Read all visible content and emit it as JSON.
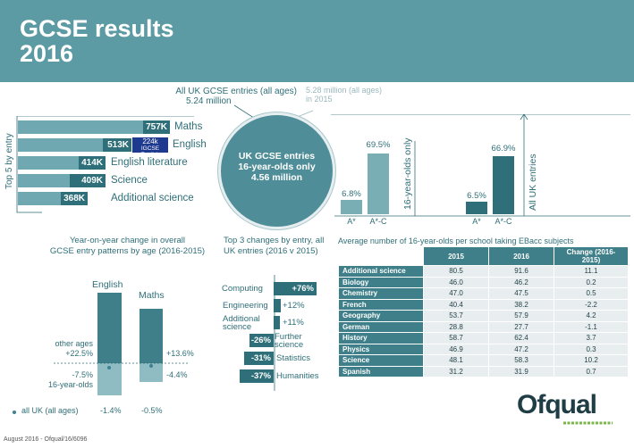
{
  "header": {
    "title_line1": "GCSE results",
    "title_line2": "2016"
  },
  "totals": {
    "all_uk_label": "All UK GCSE entries (all ages)",
    "all_uk_value": "5.24 million",
    "prev_line1": "5.28 million (all ages)",
    "prev_line2": "in 2015",
    "circle_line1": "UK GCSE entries",
    "circle_line2": "16-year-olds only",
    "circle_line3": "4.56 million"
  },
  "top5": {
    "axis_label": "Top 5 by entry",
    "items": [
      {
        "value": "757K",
        "label": "Maths"
      },
      {
        "value": "513K",
        "label": "English"
      },
      {
        "value": "414K",
        "label": "English literature"
      },
      {
        "value": "409K",
        "label": "Science"
      },
      {
        "value": "368K",
        "label": "Additional science"
      }
    ],
    "badge_value": "224k",
    "badge_label": "IGCSE English"
  },
  "grades_16": {
    "side_label": "16-year-olds only",
    "bars": [
      {
        "grade": "A*",
        "value": "6.8%"
      },
      {
        "grade": "A*-C",
        "value": "69.5%"
      }
    ]
  },
  "grades_all": {
    "side_label": "All UK entries",
    "bars": [
      {
        "grade": "A*",
        "value": "6.5%"
      },
      {
        "grade": "A*-C",
        "value": "66.9%"
      }
    ]
  },
  "yoy": {
    "title_line1": "Year-on-year change in overall",
    "title_line2": "GCSE entry patterns by age (2016-2015)",
    "col1": "English",
    "col2": "Maths",
    "other_ages_label": "other ages",
    "english_other": "+22.5%",
    "english_16": "-7.5%",
    "age16_label": "16-year-olds",
    "maths_other": "+13.6%",
    "maths_16": "-4.4%",
    "legend": "all UK (all ages)",
    "english_all": "-1.4%",
    "maths_all": "-0.5%"
  },
  "top3": {
    "title_line1": "Top 3 changes by entry, all",
    "title_line2": "UK entries (2016 v 2015)",
    "items": [
      {
        "value": "+76%",
        "label": "Computing"
      },
      {
        "value": "+12%",
        "label": "Engineering"
      },
      {
        "value": "+11%",
        "label_l1": "Additional",
        "label_l2": "science"
      },
      {
        "value": "-26%",
        "label_l1": "Further",
        "label_l2": "science"
      },
      {
        "value": "-31%",
        "label": "Statistics"
      },
      {
        "value": "-37%",
        "label": "Humanities"
      }
    ]
  },
  "ebacc": {
    "title": "Average number of 16-year-olds per school taking EBacc subjects",
    "headers": [
      "2015",
      "2016",
      "Change (2016-2015)"
    ],
    "rows": [
      [
        "Additional science",
        "80.5",
        "91.6",
        "11.1"
      ],
      [
        "Biology",
        "46.0",
        "46.2",
        "0.2"
      ],
      [
        "Chemistry",
        "47.0",
        "47.5",
        "0.5"
      ],
      [
        "French",
        "40.4",
        "38.2",
        "-2.2"
      ],
      [
        "Geography",
        "53.7",
        "57.9",
        "4.2"
      ],
      [
        "German",
        "28.8",
        "27.7",
        "-1.1"
      ],
      [
        "History",
        "58.7",
        "62.4",
        "3.7"
      ],
      [
        "Physics",
        "46.9",
        "47.2",
        "0.3"
      ],
      [
        "Science",
        "48.1",
        "58.3",
        "10.2"
      ],
      [
        "Spanish",
        "31.2",
        "31.9",
        "0.7"
      ]
    ]
  },
  "footer": "August 2016 - Ofqual/16/6096",
  "logo": "Ofqual",
  "colors": {
    "header": "#5c9ba3",
    "dark": "#2e6f79",
    "light": "#6fa8b0",
    "logo_green": "#7ab648"
  }
}
